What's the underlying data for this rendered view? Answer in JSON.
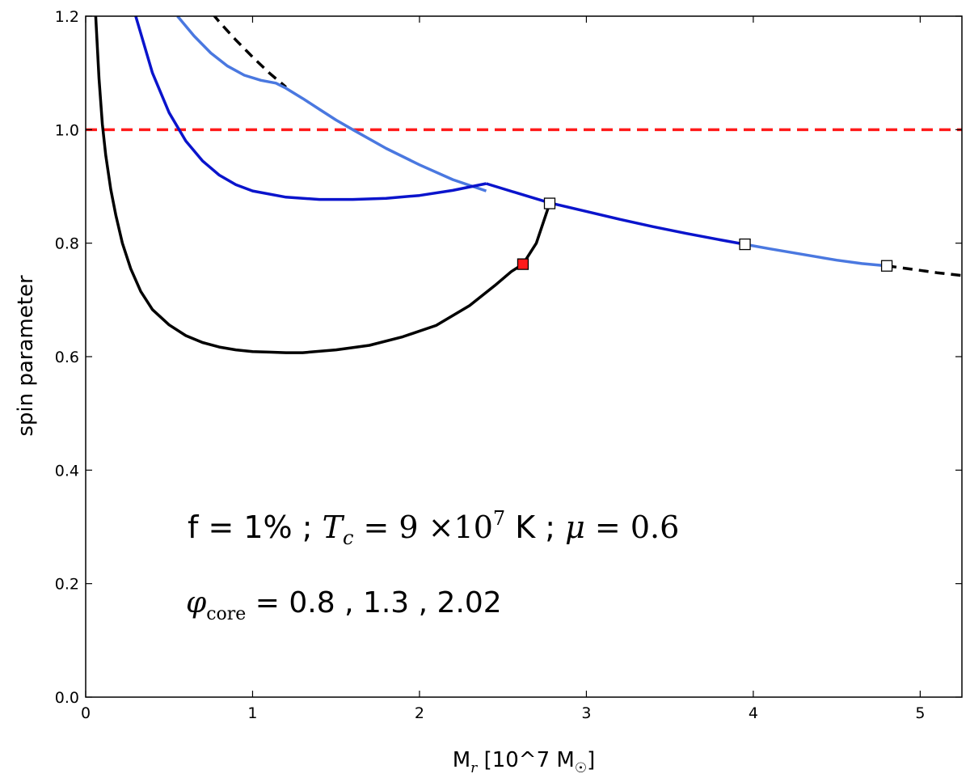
{
  "chart_data": {
    "type": "line",
    "xlabel": {
      "main": "M",
      "sub": "r",
      "rest": " [10^7 M",
      "sunsym": "☉",
      "close": "]"
    },
    "ylabel": "spin parameter",
    "xlim": [
      0,
      5.25
    ],
    "ylim": [
      0,
      1.2
    ],
    "xticks": [
      0,
      1,
      2,
      3,
      4,
      5
    ],
    "xtick_labels": [
      "0",
      "1",
      "2",
      "3",
      "4",
      "5"
    ],
    "yticks": [
      0,
      0.2,
      0.4,
      0.6,
      0.8,
      1.0,
      1.2
    ],
    "ytick_labels": [
      "0.0",
      "0.2",
      "0.4",
      "0.6",
      "0.8",
      "1.0",
      "1.2"
    ],
    "grid": false,
    "colors": {
      "black": "#000000",
      "blue": "#0a14cc",
      "lightblue": "#4a78e0",
      "red": "#ff1a1a"
    },
    "reference_line": {
      "y": 1.0,
      "style": "dashed",
      "color": "#ff1a1a"
    },
    "series": [
      {
        "color": "#000000",
        "style": "dashed",
        "x": [
          0.7,
          0.8,
          0.9,
          1.0,
          1.1,
          1.2
        ],
        "y": [
          1.226,
          1.19,
          1.158,
          1.128,
          1.1,
          1.075
        ]
      },
      {
        "color": "#4a78e0",
        "style": "solid",
        "x": [
          0.55,
          0.65,
          0.75,
          0.85,
          0.95,
          1.05,
          1.14,
          1.2,
          1.3,
          1.4,
          1.5,
          1.6,
          1.8,
          2.0,
          2.2,
          2.4
        ],
        "y": [
          1.2,
          1.165,
          1.135,
          1.112,
          1.096,
          1.087,
          1.082,
          1.073,
          1.055,
          1.036,
          1.017,
          1.0,
          0.967,
          0.938,
          0.912,
          0.892
        ]
      },
      {
        "color": "#0a14cc",
        "style": "solid",
        "x": [
          0.3,
          0.4,
          0.5,
          0.6,
          0.7,
          0.8,
          0.9,
          1.0,
          1.2,
          1.4,
          1.6,
          1.8,
          2.0,
          2.2,
          2.4
        ],
        "y": [
          1.2,
          1.1,
          1.03,
          0.98,
          0.945,
          0.92,
          0.903,
          0.892,
          0.881,
          0.877,
          0.877,
          0.879,
          0.884,
          0.893,
          0.905
        ]
      },
      {
        "color": "#0a14cc",
        "style": "solid",
        "x": [
          2.4,
          2.6,
          2.78,
          3.0,
          3.2,
          3.4,
          3.6,
          3.8,
          3.95
        ],
        "y": [
          0.905,
          0.887,
          0.871,
          0.856,
          0.842,
          0.829,
          0.817,
          0.806,
          0.798
        ]
      },
      {
        "color": "#4a78e0",
        "style": "solid",
        "x": [
          3.95,
          4.1,
          4.3,
          4.5,
          4.65,
          4.8
        ],
        "y": [
          0.798,
          0.79,
          0.78,
          0.77,
          0.764,
          0.76
        ]
      },
      {
        "color": "#000000",
        "style": "dashed",
        "x": [
          4.8,
          4.9,
          5.0,
          5.1,
          5.25
        ],
        "y": [
          0.76,
          0.756,
          0.752,
          0.748,
          0.743
        ]
      },
      {
        "color": "#000000",
        "style": "solid",
        "x": [
          0.06,
          0.08,
          0.1,
          0.12,
          0.15,
          0.18,
          0.22,
          0.27,
          0.33,
          0.4,
          0.5,
          0.6,
          0.7,
          0.8,
          0.9,
          1.0,
          1.1,
          1.2,
          1.3,
          1.5,
          1.7,
          1.9,
          2.1,
          2.3,
          2.45,
          2.55,
          2.62,
          2.7,
          2.78
        ],
        "y": [
          1.2,
          1.09,
          1.01,
          0.955,
          0.895,
          0.85,
          0.8,
          0.755,
          0.715,
          0.683,
          0.656,
          0.637,
          0.625,
          0.617,
          0.612,
          0.609,
          0.608,
          0.607,
          0.607,
          0.612,
          0.62,
          0.635,
          0.655,
          0.69,
          0.725,
          0.75,
          0.763,
          0.8,
          0.87
        ]
      }
    ],
    "markers": [
      {
        "x": 2.78,
        "y": 0.87,
        "fill": "#ffffff"
      },
      {
        "x": 3.95,
        "y": 0.798,
        "fill": "#ffffff"
      },
      {
        "x": 4.8,
        "y": 0.76,
        "fill": "#ffffff"
      },
      {
        "x": 2.62,
        "y": 0.763,
        "fill": "#ff1a1a"
      }
    ],
    "annotations": {
      "line1": {
        "f": "f = 1% ; ",
        "tc_var": "T",
        "tc_sub": "c",
        "tc_eq": " = 9 ×10",
        "tc_exp": "7",
        "tc_unit": " K ; ",
        "mu": "μ",
        "mu_eq": " = 0.6"
      },
      "line2": {
        "phi": "φ",
        "phi_sub": "core",
        "values": " = 0.8 , 1.3 , 2.02"
      }
    }
  }
}
